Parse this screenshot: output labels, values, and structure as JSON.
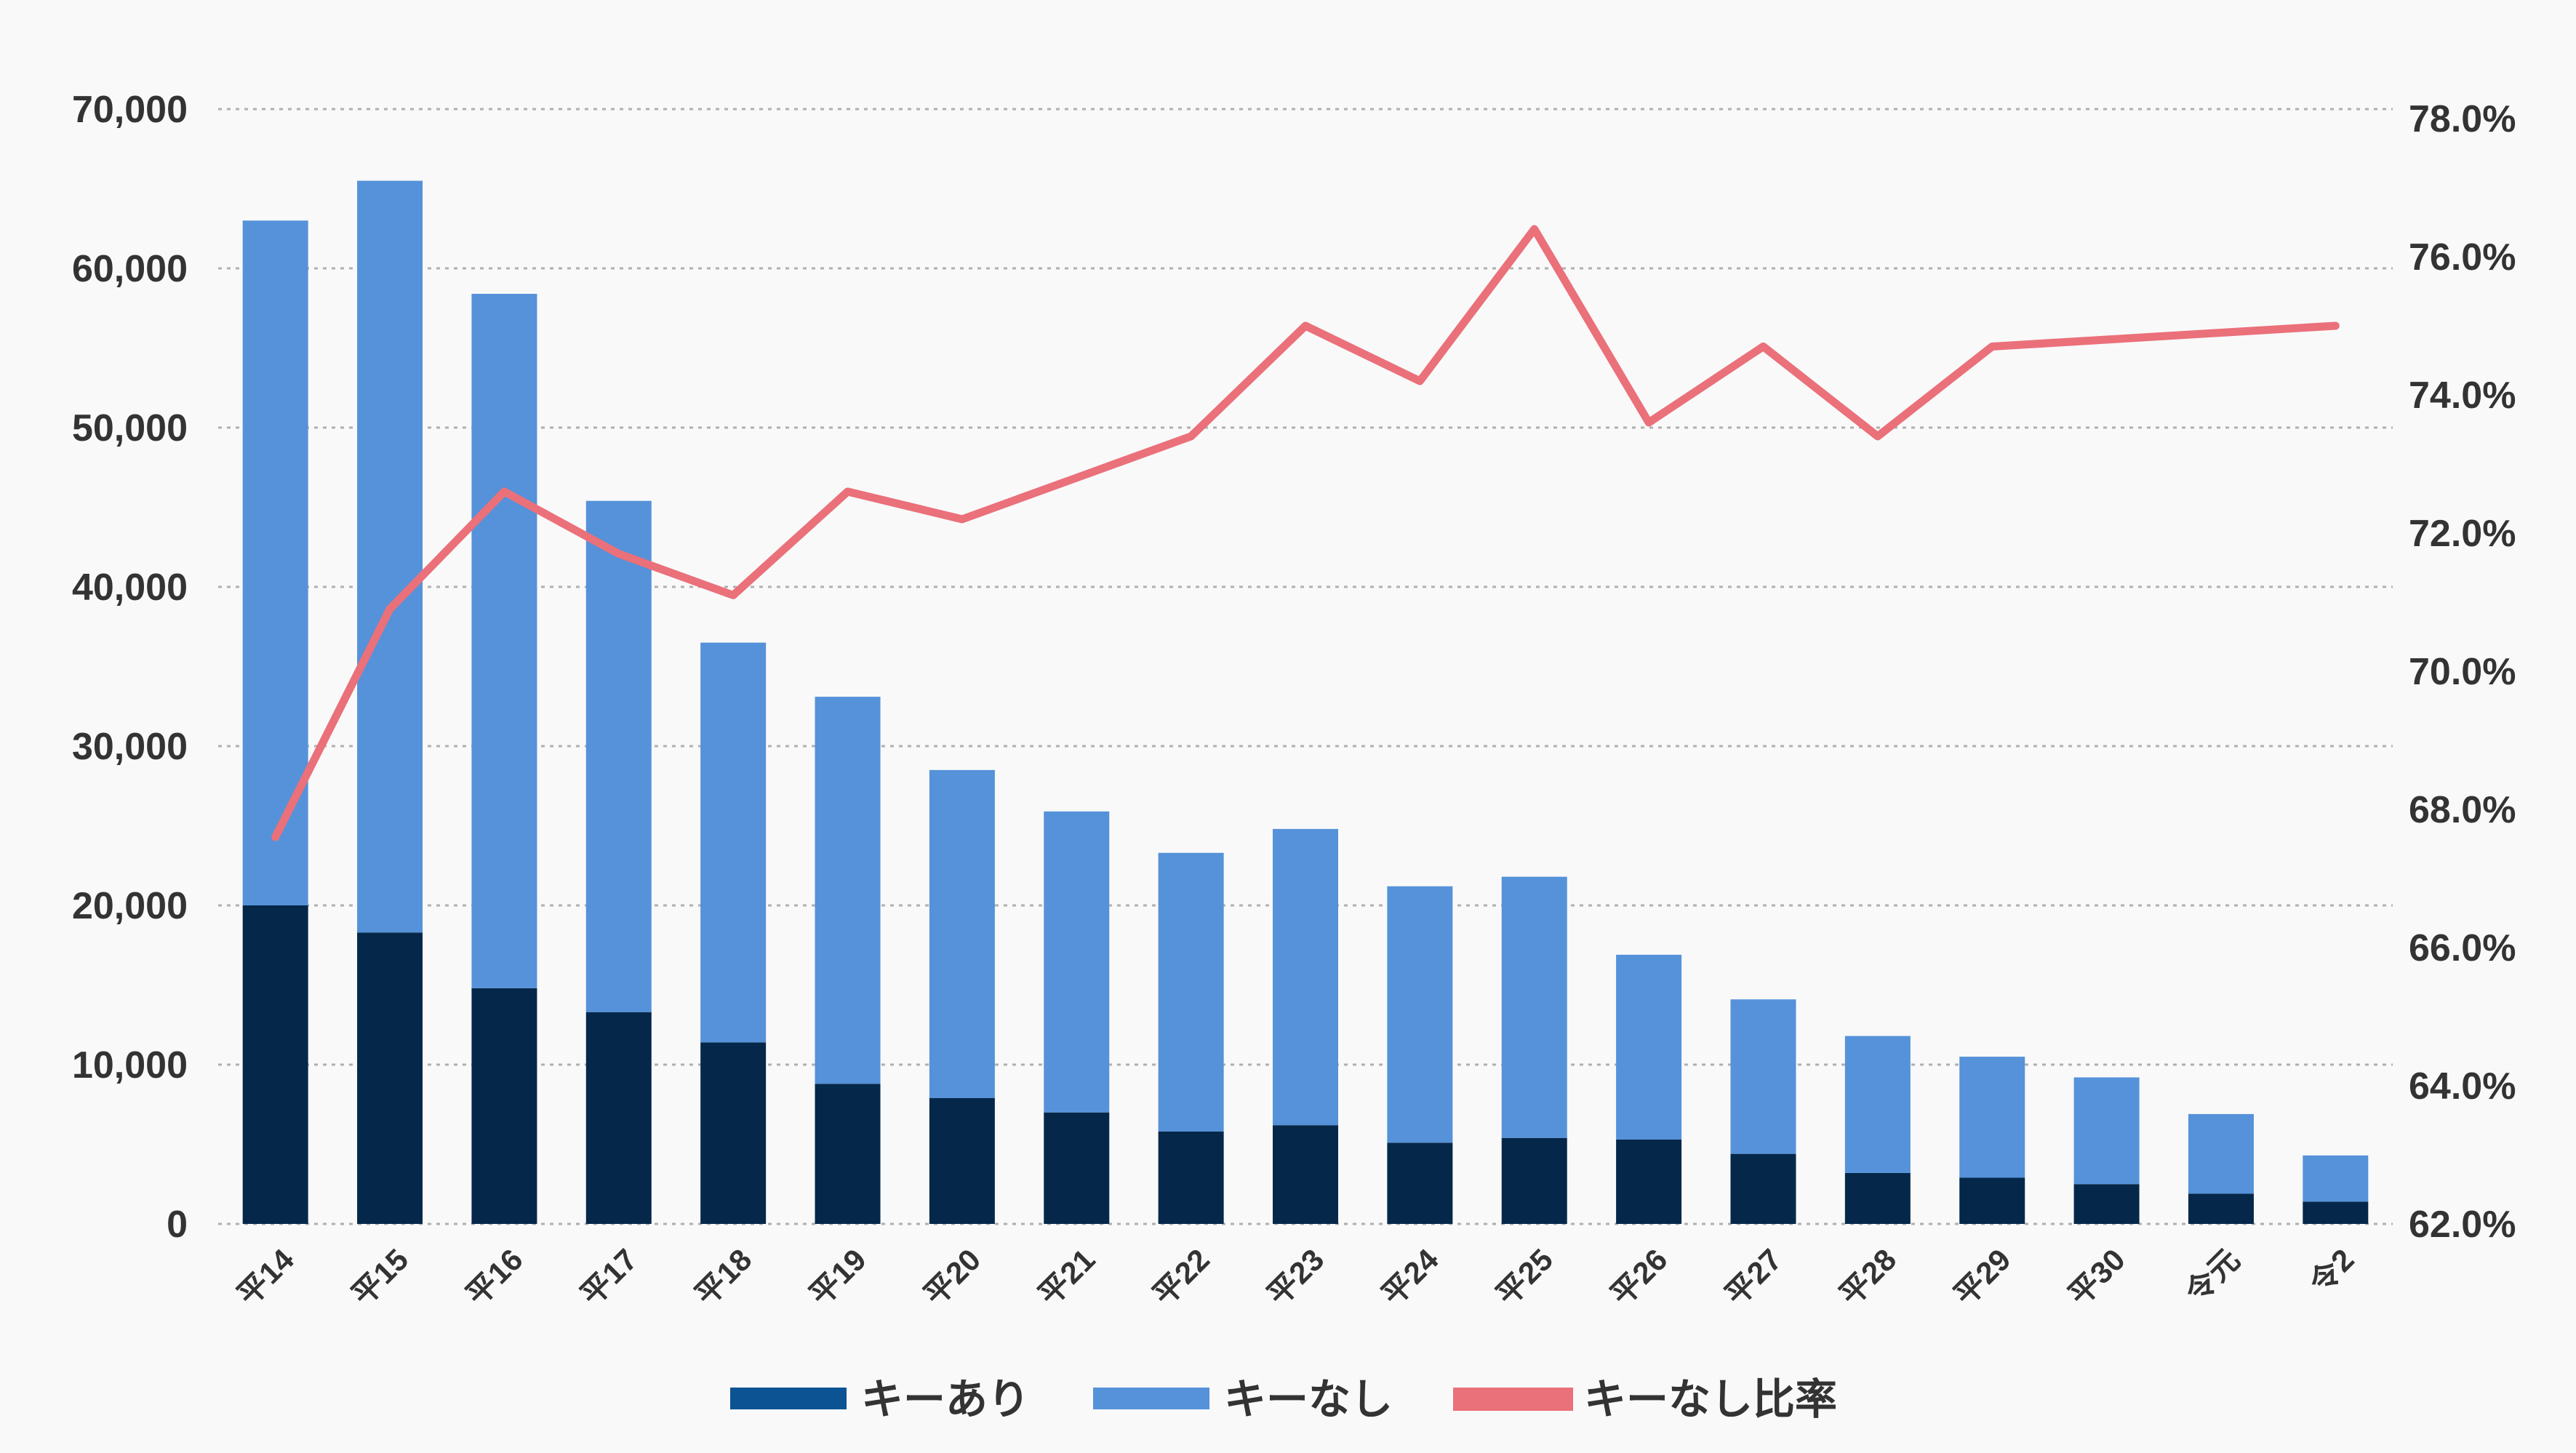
{
  "chart_data": {
    "type": "bar",
    "stacked": true,
    "categories": [
      "平14",
      "平15",
      "平16",
      "平17",
      "平18",
      "平19",
      "平20",
      "平21",
      "平22",
      "平23",
      "平24",
      "平25",
      "平26",
      "平27",
      "平28",
      "平29",
      "平30",
      "令元",
      "令2"
    ],
    "series": [
      {
        "name": "キーあり",
        "kind": "bar",
        "axis": "left",
        "color_legend": "#0c5394",
        "color": "#05284a",
        "values": [
          20000,
          18300,
          14800,
          13300,
          11400,
          8800,
          7900,
          7000,
          5800,
          6200,
          5100,
          5400,
          5300,
          4400,
          3200,
          2900,
          2500,
          1900,
          1400
        ]
      },
      {
        "name": "キーなし",
        "kind": "bar",
        "axis": "left",
        "color": "#5592d9",
        "values": [
          43000,
          47200,
          43600,
          32100,
          25100,
          24300,
          20600,
          18900,
          17500,
          18600,
          16100,
          16400,
          11600,
          9700,
          8600,
          7600,
          6700,
          5000,
          2900
        ]
      },
      {
        "name": "キーなし比率",
        "kind": "line",
        "axis": "right",
        "color": "#ea707a",
        "values": [
          67.6,
          70.9,
          72.6,
          71.7,
          71.1,
          72.6,
          72.2,
          72.8,
          73.4,
          75.0,
          74.2,
          76.4,
          73.6,
          74.7,
          73.4,
          74.7,
          74.8,
          74.9,
          75.0
        ]
      }
    ],
    "left_axis": {
      "min": 0,
      "max": 70000,
      "ticks": [
        0,
        10000,
        20000,
        30000,
        40000,
        50000,
        60000,
        70000
      ],
      "tick_labels": [
        "0",
        "10,000",
        "20,000",
        "30,000",
        "40,000",
        "50,000",
        "60,000",
        "70,000"
      ]
    },
    "right_axis": {
      "tick_labels": [
        "62.0%",
        "64.0%",
        "66.0%",
        "68.0%",
        "70.0%",
        "72.0%",
        "74.0%",
        "76.0%",
        "78.0%"
      ]
    },
    "grid": true,
    "legend_position": "bottom-center",
    "title": "",
    "xlabel": "",
    "ylabel": ""
  }
}
